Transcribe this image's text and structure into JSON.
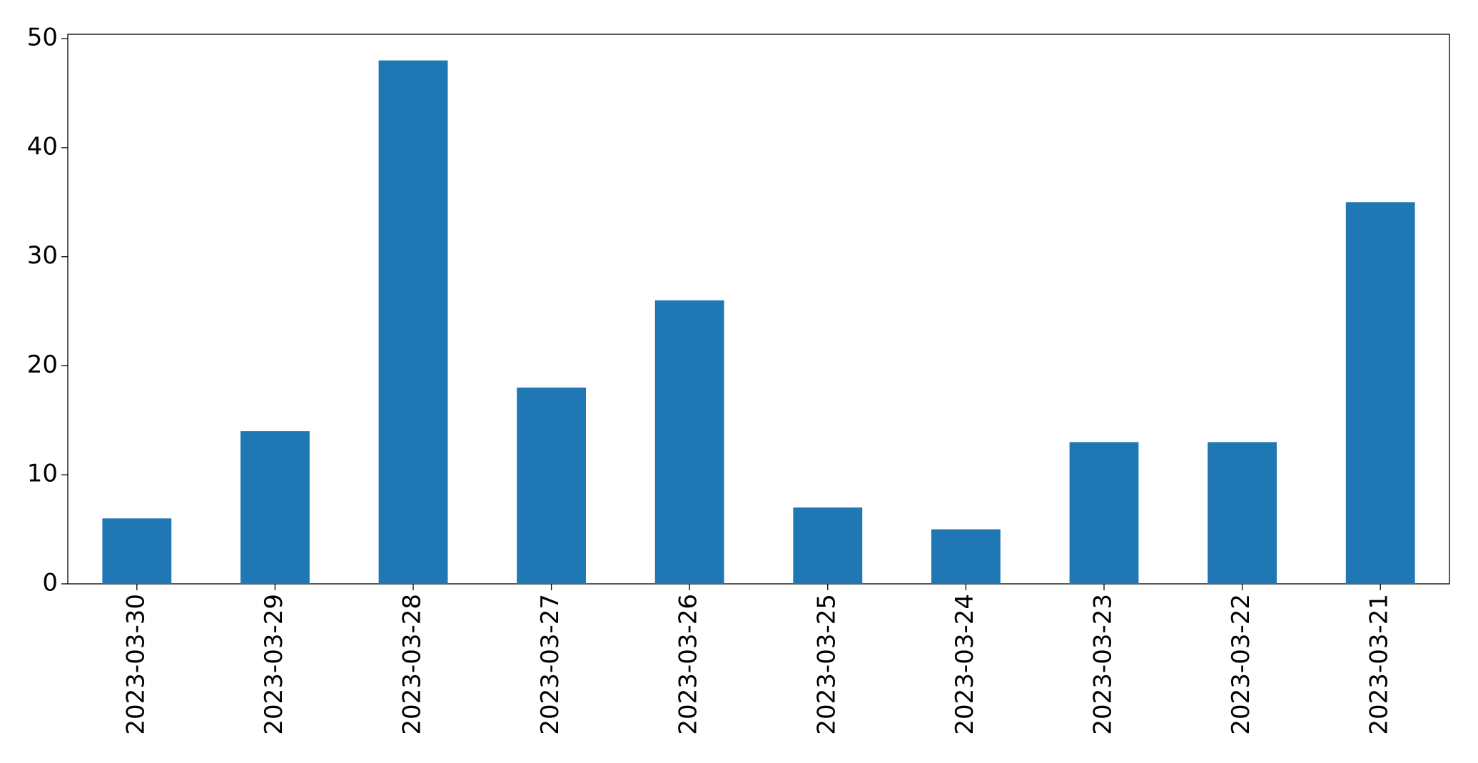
{
  "chart_data": {
    "type": "bar",
    "categories": [
      "2023-03-30",
      "2023-03-29",
      "2023-03-28",
      "2023-03-27",
      "2023-03-26",
      "2023-03-25",
      "2023-03-24",
      "2023-03-23",
      "2023-03-22",
      "2023-03-21"
    ],
    "values": [
      6,
      14,
      48,
      18,
      26,
      7,
      5,
      13,
      13,
      35
    ],
    "color": "#1f77b4",
    "ylim": [
      0,
      50.4
    ],
    "yticks": [
      0,
      10,
      20,
      30,
      40,
      50
    ],
    "grid": false
  }
}
